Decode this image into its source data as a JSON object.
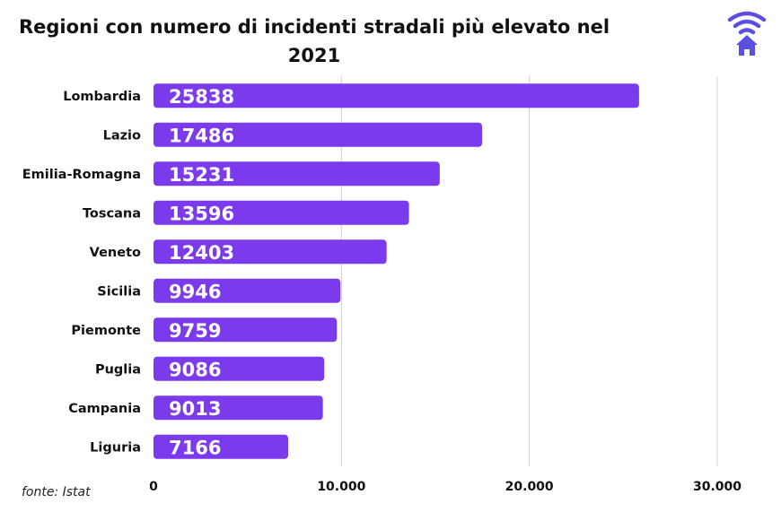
{
  "header": {
    "title": "Regioni con numero di incidenti stradali più elevato nel 2021"
  },
  "logo": {
    "icon": "wifi-home-icon",
    "color": "#5b4fe0"
  },
  "footer": {
    "source": "fonte: Istat"
  },
  "chart_data": {
    "type": "bar",
    "orientation": "horizontal",
    "title": "Regioni con numero di incidenti stradali più elevato nel 2021",
    "categories": [
      "Lombardia",
      "Lazio",
      "Emilia-Romagna",
      "Toscana",
      "Veneto",
      "Sicilia",
      "Piemonte",
      "Puglia",
      "Campania",
      "Liguria"
    ],
    "values": [
      25838,
      17486,
      15231,
      13596,
      12403,
      9946,
      9759,
      9086,
      9013,
      7166
    ],
    "data_labels": [
      "25838",
      "17486",
      "15231",
      "13596",
      "12403",
      "9946",
      "9759",
      "9086",
      "9013",
      "7166"
    ],
    "xlim": [
      0,
      30000
    ],
    "x_ticks": [
      0,
      10000,
      20000,
      30000
    ],
    "x_tick_labels": [
      "0",
      "10.000",
      "20.000",
      "30.000"
    ],
    "grid": "vertical",
    "bar_color": "#7c3aed",
    "grid_color": "#cfcfcf"
  }
}
